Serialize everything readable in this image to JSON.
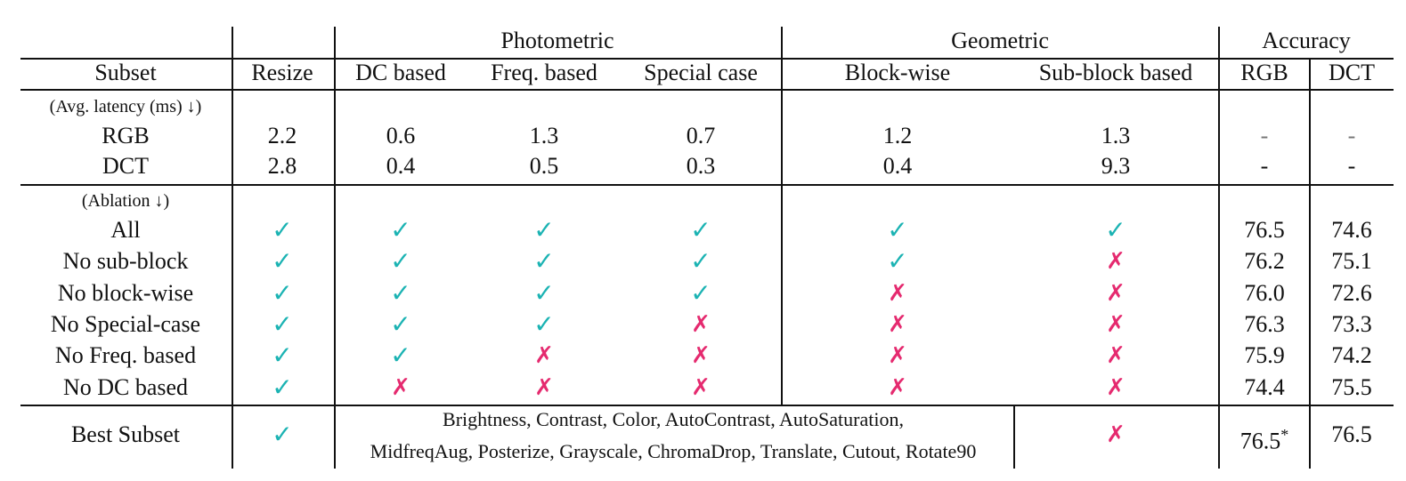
{
  "header": {
    "group_photometric": "Photometric",
    "group_geometric": "Geometric",
    "group_accuracy": "Accuracy",
    "col_subset": "Subset",
    "col_resize": "Resize",
    "col_dc": "DC based",
    "col_freq": "Freq. based",
    "col_special": "Special case",
    "col_block": "Block-wise",
    "col_subblock": "Sub-block based",
    "col_rgb": "RGB",
    "col_dct": "DCT"
  },
  "latency": {
    "label": "(Avg. latency (ms) ↓)",
    "rows": [
      {
        "name": "RGB",
        "values": [
          "2.2",
          "0.6",
          "1.3",
          "0.7",
          "1.2",
          "1.3"
        ],
        "acc": [
          "-",
          "-"
        ]
      },
      {
        "name": "DCT",
        "values": [
          "2.8",
          "0.4",
          "0.5",
          "0.3",
          "0.4",
          "9.3"
        ],
        "acc": [
          "-",
          "-"
        ]
      }
    ]
  },
  "ablation": {
    "label": "(Ablation ↓)",
    "check_symbol": "✓",
    "cross_symbol": "✗",
    "check_color": "#1bb3b3",
    "cross_color": "#e52a6f",
    "rows": [
      {
        "name": "All",
        "marks": [
          true,
          true,
          true,
          true,
          true,
          true
        ],
        "rgb": "76.5",
        "dct": "74.6"
      },
      {
        "name": "No sub-block",
        "marks": [
          true,
          true,
          true,
          true,
          true,
          false
        ],
        "rgb": "76.2",
        "dct": "75.1"
      },
      {
        "name": "No block-wise",
        "marks": [
          true,
          true,
          true,
          true,
          false,
          false
        ],
        "rgb": "76.0",
        "dct": "72.6"
      },
      {
        "name": "No Special-case",
        "marks": [
          true,
          true,
          true,
          false,
          false,
          false
        ],
        "rgb": "76.3",
        "dct": "73.3"
      },
      {
        "name": "No Freq. based",
        "marks": [
          true,
          true,
          false,
          false,
          false,
          false
        ],
        "rgb": "75.9",
        "dct": "74.2"
      },
      {
        "name": "No DC based",
        "marks": [
          true,
          false,
          false,
          false,
          false,
          false
        ],
        "rgb": "74.4",
        "dct": "75.5"
      }
    ]
  },
  "best": {
    "name": "Best Subset",
    "resize_mark": true,
    "aug_line1": "Brightness, Contrast, Color, AutoContrast, AutoSaturation,",
    "aug_line2": "MidfreqAug, Posterize, Grayscale, ChromaDrop, Translate, Cutout, Rotate90",
    "subblock_mark": false,
    "rgb": "76.5",
    "rgb_star": "*",
    "dct": "76.5"
  }
}
